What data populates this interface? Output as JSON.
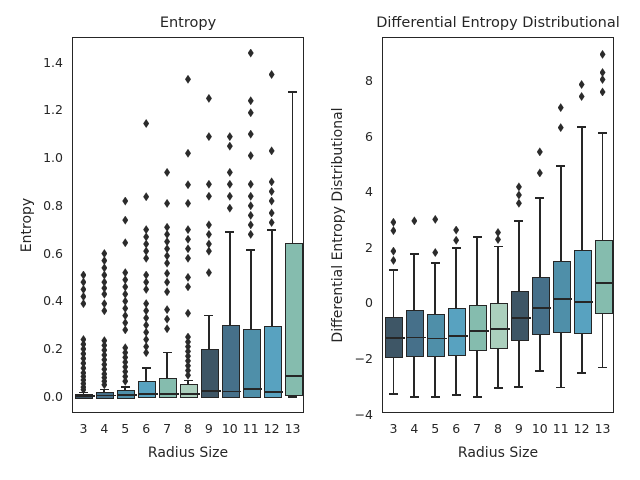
{
  "figure": {
    "background": "#ffffff",
    "text_color": "#262626",
    "edge_color": "#262626",
    "flier_color": "#2b2b2b",
    "palette": [
      "#3e5666",
      "#46708a",
      "#4f8fa9",
      "#58a2c0",
      "#85bcae",
      "#abcfbd"
    ]
  },
  "chart_data": [
    {
      "type": "boxplot",
      "title": "Entropy",
      "xlabel": "Radius Size",
      "ylabel": "Entropy",
      "categories": [
        "3",
        "4",
        "5",
        "6",
        "7",
        "8",
        "9",
        "10",
        "11",
        "12",
        "13"
      ],
      "yticks": [
        0.0,
        0.2,
        0.4,
        0.6,
        0.8,
        1.0,
        1.2,
        1.4
      ],
      "ytick_labels": [
        "0.0",
        "0.2",
        "0.4",
        "0.6",
        "0.8",
        "1.0",
        "1.2",
        "1.4"
      ],
      "ylim": [
        -0.064,
        1.503
      ],
      "grid": false,
      "legend": false,
      "boxes": [
        {
          "whislo": 0.0,
          "q1": 0.0,
          "med": 0.003,
          "q3": 0.01,
          "whishi": 0.018,
          "fliers": [
            0.51,
            0.48,
            0.45,
            0.42,
            0.39,
            0.24,
            0.22,
            0.2,
            0.18,
            0.16,
            0.14,
            0.12,
            0.1,
            0.085,
            0.07,
            0.055,
            0.04,
            0.03
          ]
        },
        {
          "whislo": 0.0,
          "q1": 0.0,
          "med": 0.005,
          "q3": 0.02,
          "whishi": 0.03,
          "fliers": [
            0.6,
            0.57,
            0.54,
            0.51,
            0.48,
            0.455,
            0.43,
            0.39,
            0.36,
            0.235,
            0.215,
            0.195,
            0.175,
            0.155,
            0.135,
            0.115,
            0.095,
            0.08,
            0.065,
            0.05
          ]
        },
        {
          "whislo": 0.0,
          "q1": 0.0,
          "med": 0.008,
          "q3": 0.028,
          "whishi": 0.04,
          "fliers": [
            0.82,
            0.74,
            0.645,
            0.52,
            0.49,
            0.46,
            0.43,
            0.4,
            0.37,
            0.34,
            0.31,
            0.28,
            0.205,
            0.185,
            0.165,
            0.145,
            0.125,
            0.105,
            0.085,
            0.065
          ]
        },
        {
          "whislo": 0.0,
          "q1": 0.004,
          "med": 0.01,
          "q3": 0.065,
          "whishi": 0.12,
          "fliers": [
            1.145,
            0.838,
            0.7,
            0.67,
            0.64,
            0.61,
            0.58,
            0.51,
            0.48,
            0.45,
            0.39,
            0.36,
            0.33,
            0.3,
            0.27,
            0.24,
            0.21,
            0.185
          ]
        },
        {
          "whislo": 0.0,
          "q1": 0.004,
          "med": 0.012,
          "q3": 0.078,
          "whishi": 0.185,
          "fliers": [
            0.94,
            0.81,
            0.71,
            0.68,
            0.65,
            0.62,
            0.59,
            0.56,
            0.517,
            0.48,
            0.44,
            0.365,
            0.325,
            0.285
          ]
        },
        {
          "whislo": 0.0,
          "q1": 0.004,
          "med": 0.01,
          "q3": 0.054,
          "whishi": 0.068,
          "fliers": [
            1.33,
            1.02,
            0.888,
            0.81,
            0.7,
            0.66,
            0.62,
            0.58,
            0.5,
            0.46,
            0.35,
            0.25,
            0.23,
            0.21,
            0.19,
            0.17,
            0.15,
            0.13,
            0.11,
            0.09
          ]
        },
        {
          "whislo": 0.0,
          "q1": 0.002,
          "med": 0.025,
          "q3": 0.2,
          "whishi": 0.34,
          "fliers": [
            1.25,
            1.09,
            0.89,
            0.84,
            0.72,
            0.68,
            0.64,
            0.61,
            0.52
          ]
        },
        {
          "whislo": 0.0,
          "q1": 0.002,
          "med": 0.022,
          "q3": 0.3,
          "whishi": 0.69,
          "fliers": [
            1.09,
            1.05,
            0.94,
            0.89,
            0.84,
            0.79
          ]
        },
        {
          "whislo": 0.0,
          "q1": 0.003,
          "med": 0.032,
          "q3": 0.285,
          "whishi": 0.615,
          "fliers": [
            1.44,
            1.24,
            1.19,
            1.1,
            1.01,
            0.89,
            0.84,
            0.8,
            0.76,
            0.72,
            0.68
          ]
        },
        {
          "whislo": 0.0,
          "q1": 0.002,
          "med": 0.02,
          "q3": 0.295,
          "whishi": 0.7,
          "fliers": [
            1.35,
            1.03,
            0.9,
            0.86,
            0.82,
            0.77,
            0.73
          ]
        },
        {
          "whislo": 0.0,
          "q1": 0.013,
          "med": 0.088,
          "q3": 0.645,
          "whishi": 1.277,
          "fliers": []
        }
      ]
    },
    {
      "type": "boxplot",
      "title": "Differential Entropy Distributional",
      "xlabel": "Radius Size",
      "ylabel": "Differential Entropy Distributional",
      "categories": [
        "3",
        "4",
        "5",
        "6",
        "7",
        "8",
        "9",
        "10",
        "11",
        "12",
        "13"
      ],
      "yticks": [
        -4,
        -2,
        0,
        2,
        4,
        6,
        8
      ],
      "ytick_labels": [
        "−4",
        "−2",
        "0",
        "2",
        "4",
        "6",
        "8"
      ],
      "ylim": [
        -3.9,
        9.54
      ],
      "grid": false,
      "legend": false,
      "boxes": [
        {
          "whislo": -3.25,
          "q1": -1.88,
          "med": -1.25,
          "q3": -0.47,
          "whishi": 1.2,
          "fliers": [
            2.92,
            2.62,
            1.88,
            1.55
          ]
        },
        {
          "whislo": -3.36,
          "q1": -1.85,
          "med": -1.22,
          "q3": -0.22,
          "whishi": 1.77,
          "fliers": [
            2.97
          ]
        },
        {
          "whislo": -3.35,
          "q1": -1.84,
          "med": -1.26,
          "q3": -0.37,
          "whishi": 1.45,
          "fliers": [
            3.02,
            1.83
          ]
        },
        {
          "whislo": -3.28,
          "q1": -1.81,
          "med": -1.18,
          "q3": -0.17,
          "whishi": 2.0,
          "fliers": [
            2.64,
            2.27
          ]
        },
        {
          "whislo": -3.35,
          "q1": -1.62,
          "med": -1.0,
          "q3": -0.07,
          "whishi": 2.38,
          "fliers": []
        },
        {
          "whislo": -3.05,
          "q1": -1.56,
          "med": -0.93,
          "q3": 0.0,
          "whishi": 2.05,
          "fliers": [
            2.55,
            2.3
          ]
        },
        {
          "whislo": -2.99,
          "q1": -1.28,
          "med": -0.52,
          "q3": 0.44,
          "whishi": 2.96,
          "fliers": [
            4.19,
            3.9,
            3.6
          ]
        },
        {
          "whislo": -2.42,
          "q1": -1.06,
          "med": -0.16,
          "q3": 0.94,
          "whishi": 3.79,
          "fliers": [
            5.45,
            4.69
          ]
        },
        {
          "whislo": -3.02,
          "q1": -1.0,
          "med": 0.17,
          "q3": 1.52,
          "whishi": 4.93,
          "fliers": [
            7.04,
            6.32
          ]
        },
        {
          "whislo": -2.5,
          "q1": -1.02,
          "med": 0.05,
          "q3": 1.91,
          "whishi": 6.35,
          "fliers": [
            7.87,
            7.44
          ]
        },
        {
          "whislo": -2.3,
          "q1": -0.3,
          "med": 0.73,
          "q3": 2.27,
          "whishi": 6.14,
          "fliers": [
            8.95,
            8.3,
            8.05,
            7.6
          ]
        }
      ]
    }
  ]
}
